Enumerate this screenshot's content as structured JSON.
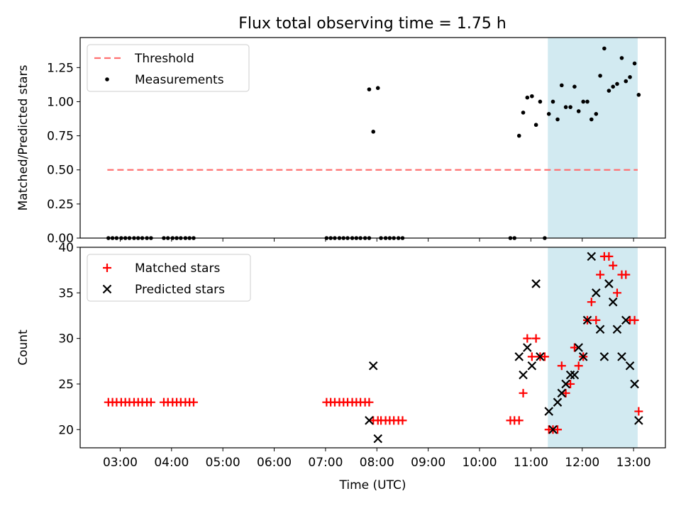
{
  "title": "Flux total observing time = 1.75 h",
  "colors": {
    "threshold": "#ff7070",
    "matched": "#ff0000",
    "predicted": "#000000",
    "highlight": "#add8e6"
  },
  "chart_data": [
    {
      "type": "scatter",
      "ylabel": "Matched/Predicted stars",
      "xlim": [
        2.22,
        13.62
      ],
      "ylim": [
        0,
        1.47
      ],
      "yticks": [
        0.0,
        0.25,
        0.5,
        0.75,
        1.0,
        1.25
      ],
      "ytick_labels": [
        "0.00",
        "0.25",
        "0.50",
        "0.75",
        "1.00",
        "1.25"
      ],
      "highlight_span": [
        11.33,
        13.08
      ],
      "legend": {
        "placement": "upper-left",
        "entries": [
          {
            "label": "Threshold",
            "marker": "dashed-line"
          },
          {
            "label": "Measurements",
            "marker": "dot"
          }
        ]
      },
      "threshold": {
        "label": "Threshold",
        "y": 0.5,
        "x_range": [
          2.75,
          13.08
        ]
      },
      "series": [
        {
          "name": "Measurements",
          "points": [
            [
              2.77,
              0
            ],
            [
              2.85,
              0
            ],
            [
              2.93,
              0
            ],
            [
              3.02,
              0
            ],
            [
              3.1,
              0
            ],
            [
              3.18,
              0
            ],
            [
              3.27,
              0
            ],
            [
              3.35,
              0
            ],
            [
              3.43,
              0
            ],
            [
              3.52,
              0
            ],
            [
              3.6,
              0
            ],
            [
              3.85,
              0
            ],
            [
              3.93,
              0
            ],
            [
              4.02,
              0
            ],
            [
              4.1,
              0
            ],
            [
              4.18,
              0
            ],
            [
              4.27,
              0
            ],
            [
              4.35,
              0
            ],
            [
              4.43,
              0
            ],
            [
              7.02,
              0
            ],
            [
              7.1,
              0
            ],
            [
              7.18,
              0
            ],
            [
              7.27,
              0
            ],
            [
              7.35,
              0
            ],
            [
              7.43,
              0
            ],
            [
              7.52,
              0
            ],
            [
              7.6,
              0
            ],
            [
              7.68,
              0
            ],
            [
              7.77,
              0
            ],
            [
              7.85,
              0
            ],
            [
              8.08,
              0
            ],
            [
              8.17,
              0
            ],
            [
              8.25,
              0
            ],
            [
              8.33,
              0
            ],
            [
              8.42,
              0
            ],
            [
              8.5,
              0
            ],
            [
              10.6,
              0
            ],
            [
              10.68,
              0
            ],
            [
              11.27,
              0
            ],
            [
              7.85,
              1.09
            ],
            [
              7.93,
              0.78
            ],
            [
              8.02,
              1.1
            ],
            [
              10.77,
              0.75
            ],
            [
              10.85,
              0.92
            ],
            [
              10.93,
              1.03
            ],
            [
              11.02,
              1.04
            ],
            [
              11.1,
              0.83
            ],
            [
              11.18,
              1.0
            ],
            [
              11.35,
              0.91
            ],
            [
              11.43,
              1.0
            ],
            [
              11.52,
              0.87
            ],
            [
              11.6,
              1.12
            ],
            [
              11.68,
              0.96
            ],
            [
              11.77,
              0.96
            ],
            [
              11.85,
              1.11
            ],
            [
              11.93,
              0.93
            ],
            [
              12.02,
              1.0
            ],
            [
              12.1,
              1.0
            ],
            [
              12.18,
              0.87
            ],
            [
              12.27,
              0.91
            ],
            [
              12.35,
              1.19
            ],
            [
              12.43,
              1.39
            ],
            [
              12.52,
              1.08
            ],
            [
              12.6,
              1.11
            ],
            [
              12.68,
              1.13
            ],
            [
              12.77,
              1.32
            ],
            [
              12.85,
              1.15
            ],
            [
              12.93,
              1.18
            ],
            [
              13.02,
              1.28
            ],
            [
              13.1,
              1.05
            ]
          ]
        }
      ]
    },
    {
      "type": "scatter",
      "xlabel": "Time (UTC)",
      "ylabel": "Count",
      "xlim": [
        2.22,
        13.62
      ],
      "ylim": [
        18,
        40
      ],
      "xticks": [
        3,
        4,
        5,
        6,
        7,
        8,
        9,
        10,
        11,
        12,
        13
      ],
      "xtick_labels": [
        "03:00",
        "04:00",
        "05:00",
        "06:00",
        "07:00",
        "08:00",
        "09:00",
        "10:00",
        "11:00",
        "12:00",
        "13:00"
      ],
      "yticks": [
        20,
        25,
        30,
        35,
        40
      ],
      "ytick_labels": [
        "20",
        "25",
        "30",
        "35",
        "40"
      ],
      "highlight_span": [
        11.33,
        13.08
      ],
      "legend": {
        "placement": "upper-left",
        "entries": [
          {
            "label": "Matched stars",
            "marker": "plus"
          },
          {
            "label": "Predicted stars",
            "marker": "x"
          }
        ]
      },
      "series": [
        {
          "name": "Matched stars",
          "points": [
            [
              2.77,
              23
            ],
            [
              2.85,
              23
            ],
            [
              2.93,
              23
            ],
            [
              3.02,
              23
            ],
            [
              3.1,
              23
            ],
            [
              3.18,
              23
            ],
            [
              3.27,
              23
            ],
            [
              3.35,
              23
            ],
            [
              3.43,
              23
            ],
            [
              3.52,
              23
            ],
            [
              3.6,
              23
            ],
            [
              3.85,
              23
            ],
            [
              3.93,
              23
            ],
            [
              4.02,
              23
            ],
            [
              4.1,
              23
            ],
            [
              4.18,
              23
            ],
            [
              4.27,
              23
            ],
            [
              4.35,
              23
            ],
            [
              4.43,
              23
            ],
            [
              7.02,
              23
            ],
            [
              7.1,
              23
            ],
            [
              7.18,
              23
            ],
            [
              7.27,
              23
            ],
            [
              7.35,
              23
            ],
            [
              7.43,
              23
            ],
            [
              7.52,
              23
            ],
            [
              7.6,
              23
            ],
            [
              7.68,
              23
            ],
            [
              7.77,
              23
            ],
            [
              7.85,
              23
            ],
            [
              7.93,
              21
            ],
            [
              8.02,
              21
            ],
            [
              8.08,
              21
            ],
            [
              8.17,
              21
            ],
            [
              8.25,
              21
            ],
            [
              8.33,
              21
            ],
            [
              8.42,
              21
            ],
            [
              8.5,
              21
            ],
            [
              10.6,
              21
            ],
            [
              10.68,
              21
            ],
            [
              10.77,
              21
            ],
            [
              10.85,
              24
            ],
            [
              10.93,
              30
            ],
            [
              11.02,
              28
            ],
            [
              11.1,
              30
            ],
            [
              11.18,
              28
            ],
            [
              11.27,
              28
            ],
            [
              11.35,
              20
            ],
            [
              11.43,
              20
            ],
            [
              11.52,
              20
            ],
            [
              11.6,
              27
            ],
            [
              11.68,
              24
            ],
            [
              11.77,
              25
            ],
            [
              11.85,
              29
            ],
            [
              11.93,
              27
            ],
            [
              12.02,
              28
            ],
            [
              12.1,
              32
            ],
            [
              12.18,
              34
            ],
            [
              12.27,
              32
            ],
            [
              12.35,
              37
            ],
            [
              12.43,
              39
            ],
            [
              12.52,
              39
            ],
            [
              12.6,
              38
            ],
            [
              12.68,
              35
            ],
            [
              12.77,
              37
            ],
            [
              12.85,
              37
            ],
            [
              12.93,
              32
            ],
            [
              13.02,
              32
            ],
            [
              13.1,
              22
            ]
          ]
        },
        {
          "name": "Predicted stars",
          "points": [
            [
              7.85,
              21
            ],
            [
              7.93,
              27
            ],
            [
              8.02,
              19
            ],
            [
              10.77,
              28
            ],
            [
              10.85,
              26
            ],
            [
              10.93,
              29
            ],
            [
              11.02,
              27
            ],
            [
              11.1,
              36
            ],
            [
              11.18,
              28
            ],
            [
              11.35,
              22
            ],
            [
              11.43,
              20
            ],
            [
              11.52,
              23
            ],
            [
              11.6,
              24
            ],
            [
              11.68,
              25
            ],
            [
              11.77,
              26
            ],
            [
              11.85,
              26
            ],
            [
              11.93,
              29
            ],
            [
              12.02,
              28
            ],
            [
              12.1,
              32
            ],
            [
              12.18,
              39
            ],
            [
              12.27,
              35
            ],
            [
              12.35,
              31
            ],
            [
              12.43,
              28
            ],
            [
              12.52,
              36
            ],
            [
              12.6,
              34
            ],
            [
              12.68,
              31
            ],
            [
              12.77,
              28
            ],
            [
              12.85,
              32
            ],
            [
              12.93,
              27
            ],
            [
              13.02,
              25
            ],
            [
              13.1,
              21
            ]
          ]
        }
      ]
    }
  ]
}
